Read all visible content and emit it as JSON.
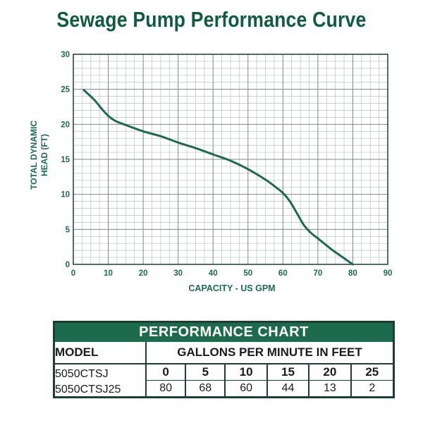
{
  "title": "Sewage Pump Performance Curve",
  "chart_data": {
    "type": "line",
    "xlabel": "CAPACITY - US GPM",
    "ylabel_lines": [
      "TOTAL DYNAMIC",
      "HEAD (FT)"
    ],
    "xlim": [
      0,
      90
    ],
    "ylim": [
      0,
      30
    ],
    "x_ticks": [
      0,
      10,
      20,
      30,
      40,
      50,
      60,
      70,
      80,
      90
    ],
    "y_ticks": [
      0,
      5,
      10,
      15,
      20,
      25,
      30
    ],
    "grid": true,
    "series": [
      {
        "x": [
          3,
          6,
          8,
          10,
          12,
          15,
          20,
          25,
          30,
          35,
          40,
          45,
          50,
          55,
          58,
          60,
          62,
          64,
          66,
          68,
          70,
          72,
          74,
          76,
          78,
          80
        ],
        "y": [
          24.9,
          23.5,
          22.3,
          21.2,
          20.5,
          19.9,
          19.0,
          18.3,
          17.4,
          16.6,
          15.7,
          14.8,
          13.6,
          12.1,
          11.0,
          10.2,
          9.0,
          7.3,
          5.6,
          4.5,
          3.7,
          2.9,
          2.1,
          1.4,
          0.7,
          0.0
        ],
        "color": "#1d6b4e"
      }
    ]
  },
  "table": {
    "heading": "PERFORMANCE CHART",
    "model_label": "MODEL",
    "gpm_label": "GALLONS PER MINUTE IN FEET",
    "models": [
      "5050CTSJ",
      "5050CTSJ25"
    ],
    "head_ft": [
      "0",
      "5",
      "10",
      "15",
      "20",
      "25"
    ],
    "gpm": [
      "80",
      "68",
      "60",
      "44",
      "13",
      "2"
    ]
  }
}
